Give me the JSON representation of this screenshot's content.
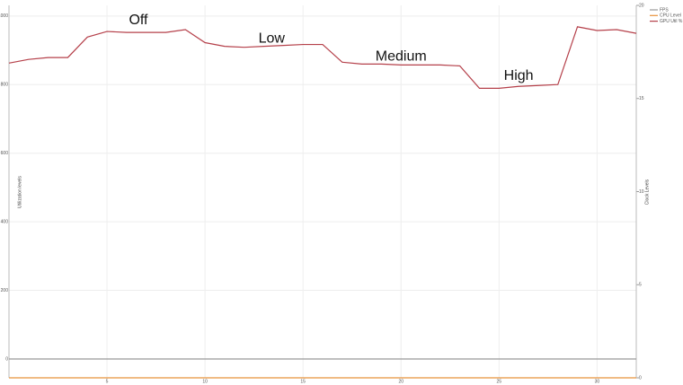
{
  "chart_data": {
    "type": "line",
    "y_label": "Utilization levels",
    "y2_label": "Clock Levels",
    "x": [
      0,
      1,
      2,
      3,
      4,
      5,
      6,
      7,
      8,
      9,
      10,
      11,
      12,
      13,
      14,
      15,
      16,
      17,
      18,
      19,
      20,
      21,
      22,
      23,
      24,
      25,
      26,
      27,
      28,
      29,
      30,
      31,
      32
    ],
    "xlim": [
      0,
      32
    ],
    "xticks": [
      5,
      10,
      15,
      20,
      25,
      30
    ],
    "ylim": [
      -55,
      1031
    ],
    "yticks": [
      0,
      200,
      400,
      600,
      800,
      1000
    ],
    "y2lim": [
      0,
      20
    ],
    "y2ticks": [
      0,
      5,
      10,
      15,
      20
    ],
    "grid": true,
    "legend": "right",
    "series": [
      {
        "name": "FPS",
        "color": "#999999",
        "axis": "y",
        "values": [
          0,
          0,
          0,
          0,
          0,
          0,
          0,
          0,
          0,
          0,
          0,
          0,
          0,
          0,
          0,
          0,
          0,
          0,
          0,
          0,
          0,
          0,
          0,
          0,
          0,
          0,
          0,
          0,
          0,
          0,
          0,
          0,
          0
        ]
      },
      {
        "name": "CPU Level",
        "color": "#e8923a",
        "axis": "y2",
        "values": [
          0,
          0,
          0,
          0,
          0,
          0,
          0,
          0,
          0,
          0,
          0,
          0,
          0,
          0,
          0,
          0,
          0,
          0,
          0,
          0,
          0,
          0,
          0,
          0,
          0,
          0,
          0,
          0,
          0,
          0,
          0,
          0,
          0
        ]
      },
      {
        "name": "GPU Util %",
        "color": "#b5404a",
        "axis": "y2",
        "values": [
          16.9,
          17.1,
          17.2,
          17.2,
          18.3,
          18.6,
          18.55,
          18.55,
          18.55,
          18.7,
          18.0,
          17.8,
          17.75,
          17.8,
          17.85,
          17.9,
          17.9,
          16.95,
          16.85,
          16.85,
          16.8,
          16.8,
          16.8,
          16.75,
          15.55,
          15.55,
          15.65,
          15.7,
          15.75,
          18.85,
          18.65,
          18.7,
          18.5
        ]
      }
    ],
    "annotations": [
      {
        "text": "Off",
        "x": 6.6,
        "y2": 19.2
      },
      {
        "text": "Low",
        "x": 13.4,
        "y2": 18.2
      },
      {
        "text": "Medium",
        "x": 20,
        "y2": 17.25
      },
      {
        "text": "High",
        "x": 26,
        "y2": 16.2
      }
    ]
  }
}
